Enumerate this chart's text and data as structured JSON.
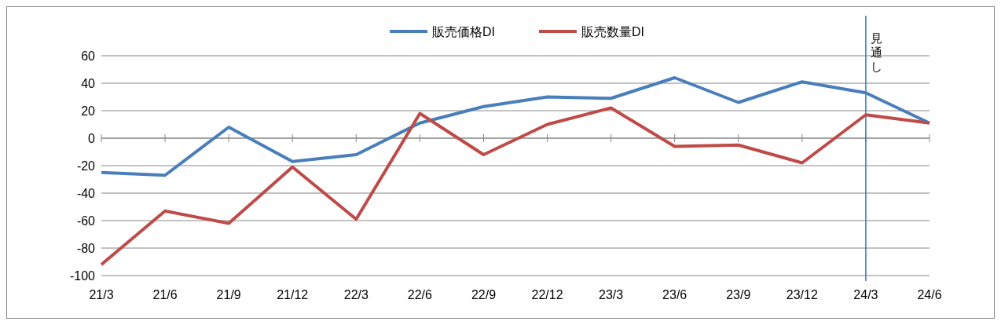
{
  "chart_data": {
    "type": "line",
    "categories": [
      "21/3",
      "21/6",
      "21/9",
      "21/12",
      "22/3",
      "22/6",
      "22/9",
      "22/12",
      "23/3",
      "23/6",
      "23/9",
      "23/12",
      "24/3",
      "24/6"
    ],
    "series": [
      {
        "name": "販売価格DI",
        "color": "#4a7ebb",
        "values": [
          -25,
          -27,
          8,
          -17,
          -12,
          11,
          23,
          30,
          29,
          44,
          26,
          41,
          33,
          11
        ]
      },
      {
        "name": "販売数量DI",
        "color": "#be4b48",
        "values": [
          -92,
          -53,
          -62,
          -21,
          -59,
          18,
          -12,
          10,
          22,
          -6,
          -5,
          -18,
          17,
          11
        ]
      }
    ],
    "ylim": [
      -100,
      60
    ],
    "yticks": [
      -100,
      -80,
      -60,
      -40,
      -20,
      0,
      20,
      40,
      60
    ],
    "grid": "y",
    "legend": "top",
    "marker": "none",
    "line_style": "solid",
    "ref_lines": [
      {
        "axis": "x",
        "value": "24/3",
        "label": "見通し",
        "color": "#2e75b6"
      }
    ]
  }
}
